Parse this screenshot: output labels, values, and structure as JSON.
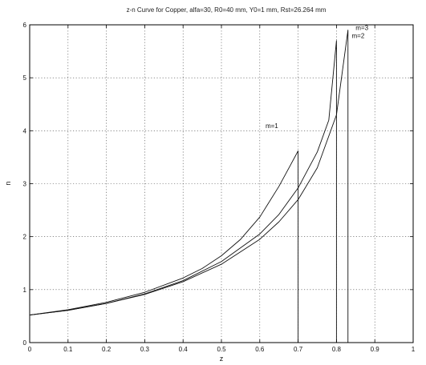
{
  "chart_data": {
    "type": "line",
    "title": "z-n Curve for Copper, alfa=30, R0=40 mm, Y0=1 mm, Rst=26.264 mm",
    "xlabel": "z",
    "ylabel": "n",
    "xlim": [
      0,
      1
    ],
    "ylim": [
      0,
      6
    ],
    "xticks": [
      "0",
      "0.1",
      "0.2",
      "0.3",
      "0.4",
      "0.5",
      "0.6",
      "0.7",
      "0.8",
      "0.9",
      "1"
    ],
    "yticks": [
      "0",
      "1",
      "2",
      "3",
      "4",
      "5",
      "6"
    ],
    "grid": true,
    "line_color": "#111111",
    "series": [
      {
        "name": "m=1",
        "x": [
          0,
          0.1,
          0.2,
          0.3,
          0.4,
          0.45,
          0.5,
          0.55,
          0.6,
          0.65,
          0.68,
          0.7,
          0.7
        ],
        "y": [
          0.52,
          0.62,
          0.76,
          0.95,
          1.22,
          1.4,
          1.64,
          1.95,
          2.37,
          2.95,
          3.35,
          3.62,
          0
        ]
      },
      {
        "name": "m=2",
        "x": [
          0,
          0.1,
          0.2,
          0.3,
          0.4,
          0.5,
          0.6,
          0.65,
          0.7,
          0.75,
          0.78,
          0.8,
          0.8
        ],
        "y": [
          0.52,
          0.61,
          0.74,
          0.92,
          1.17,
          1.53,
          2.05,
          2.42,
          2.92,
          3.6,
          4.2,
          5.7,
          0
        ]
      },
      {
        "name": "m=3",
        "x": [
          0,
          0.1,
          0.2,
          0.3,
          0.4,
          0.5,
          0.6,
          0.65,
          0.7,
          0.75,
          0.8,
          0.83,
          0.83
        ],
        "y": [
          0.52,
          0.61,
          0.74,
          0.91,
          1.15,
          1.48,
          1.95,
          2.28,
          2.7,
          3.3,
          4.3,
          5.9,
          0
        ]
      }
    ],
    "annotations": [
      {
        "text": "m=1",
        "x": 0.615,
        "y": 4.05
      },
      {
        "text": "m=2",
        "x": 0.84,
        "y": 5.75
      },
      {
        "text": "m=3",
        "x": 0.85,
        "y": 5.9
      }
    ]
  }
}
